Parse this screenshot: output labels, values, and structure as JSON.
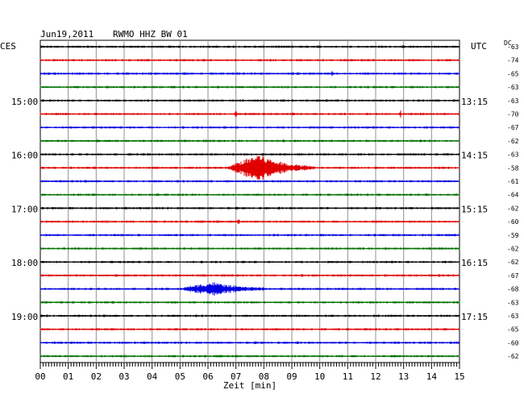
{
  "header": {
    "date": "Jun19,2011",
    "station": "RWMO HHZ BW 01",
    "left_zone": "CES",
    "right_zone": "UTC",
    "dc_label": "DC"
  },
  "chart_data": {
    "type": "line",
    "title": "Jun19,2011   RWMO HHZ BW 01",
    "xlabel": "Zeit [min]",
    "xlim": [
      0,
      15
    ],
    "x_ticks": [
      "00",
      "01",
      "02",
      "03",
      "04",
      "05",
      "06",
      "07",
      "08",
      "09",
      "10",
      "11",
      "12",
      "13",
      "14",
      "15"
    ],
    "rows_per_hour": 4,
    "row_minutes": 15,
    "left_time_labels": [
      {
        "row": 4,
        "label": "15:00"
      },
      {
        "row": 8,
        "label": "16:00"
      },
      {
        "row": 12,
        "label": "17:00"
      },
      {
        "row": 16,
        "label": "18:00"
      },
      {
        "row": 20,
        "label": "19:00"
      }
    ],
    "right_time_labels": [
      {
        "row": 4,
        "label": "13:15"
      },
      {
        "row": 8,
        "label": "14:15"
      },
      {
        "row": 12,
        "label": "15:15"
      },
      {
        "row": 16,
        "label": "16:15"
      },
      {
        "row": 20,
        "label": "17:15"
      }
    ],
    "dc_offsets": [
      "-63",
      "-74",
      "-65",
      "-63",
      "-63",
      "-70",
      "-67",
      "-62",
      "-63",
      "-58",
      "-61",
      "-64",
      "-62",
      "-60",
      "-59",
      "-62",
      "-62",
      "-67",
      "-68",
      "-63",
      "-63",
      "-65",
      "-60",
      "-62"
    ],
    "colors": [
      "#000000",
      "#e00000",
      "#0000e0",
      "#007000"
    ],
    "events": [
      {
        "row": 9,
        "start_min": 6.7,
        "end_min": 9.8,
        "amplitude": 1.0,
        "peak_min": 7.8
      },
      {
        "row": 18,
        "start_min": 5.0,
        "end_min": 8.0,
        "amplitude": 0.45,
        "peak_min": 6.2
      },
      {
        "row": 5,
        "start_min": 6.95,
        "end_min": 7.05,
        "amplitude": 0.4,
        "peak_min": 7.0
      },
      {
        "row": 5,
        "start_min": 12.85,
        "end_min": 12.95,
        "amplitude": 0.25,
        "peak_min": 12.9
      },
      {
        "row": 13,
        "start_min": 7.05,
        "end_min": 7.15,
        "amplitude": 0.2,
        "peak_min": 7.1
      },
      {
        "row": 2,
        "start_min": 10.4,
        "end_min": 10.5,
        "amplitude": 0.15,
        "peak_min": 10.45
      }
    ]
  }
}
